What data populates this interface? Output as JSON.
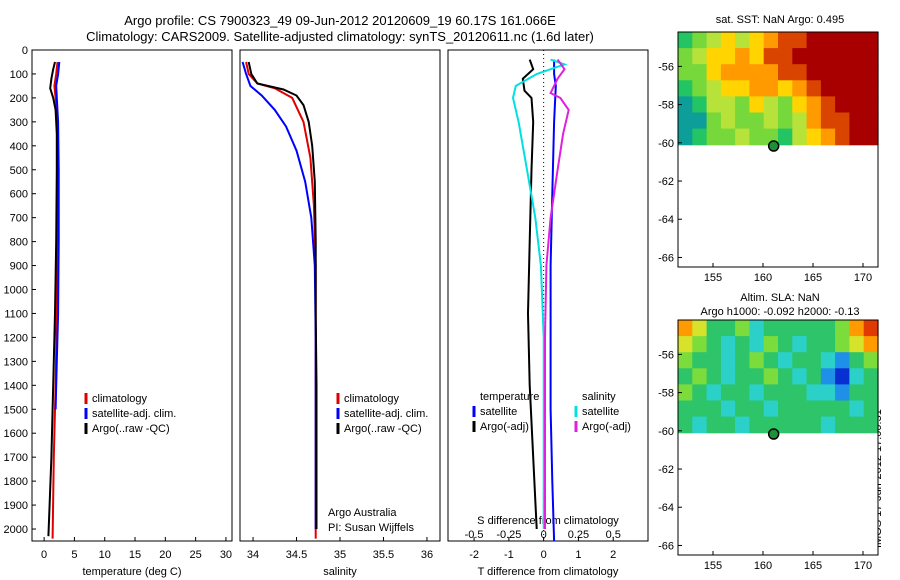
{
  "header": {
    "line1": "Argo profile: CS 7900323_49 09-Jun-2012 20120609_19 60.17S 161.066E",
    "line2": "Climatology: CARS2009. Satellite-adjusted climatology: synTS_20120611.nc (1.6d later)"
  },
  "colors": {
    "climatology": "#e00000",
    "satellite": "#0000ff",
    "argo": "#000000",
    "sat_salinity": "#00e0e0",
    "argo_adj_salinity": "#e020e0"
  },
  "chart_data": [
    {
      "type": "line",
      "xlabel": "temperature (deg C)",
      "xticks": [
        "0",
        "5",
        "10",
        "15",
        "20",
        "25",
        "30"
      ],
      "xlim": [
        -2,
        31
      ],
      "ylim": [
        0,
        2050
      ],
      "yticks": [
        "0",
        "100",
        "200",
        "300",
        "400",
        "500",
        "600",
        "700",
        "800",
        "900",
        "1000",
        "1100",
        "1200",
        "1300",
        "1400",
        "1500",
        "1600",
        "1700",
        "1800",
        "1900",
        "2000"
      ],
      "legend": [
        "climatology",
        "satellite-adj. clim.",
        "Argo(..raw -QC)"
      ],
      "series": [
        {
          "name": "climatology",
          "points": [
            [
              2.2,
              50
            ],
            [
              2.0,
              100
            ],
            [
              1.7,
              150
            ],
            [
              1.9,
              200
            ],
            [
              2.1,
              300
            ],
            [
              2.2,
              500
            ],
            [
              2.2,
              800
            ],
            [
              2.1,
              1100
            ],
            [
              1.9,
              1400
            ],
            [
              1.6,
              1700
            ],
            [
              1.4,
              2040
            ]
          ]
        },
        {
          "name": "satellite-adj. clim.",
          "points": [
            [
              2.5,
              50
            ],
            [
              2.3,
              100
            ],
            [
              2.0,
              150
            ],
            [
              2.1,
              200
            ],
            [
              2.3,
              300
            ],
            [
              2.4,
              500
            ],
            [
              2.4,
              800
            ],
            [
              2.3,
              1100
            ],
            [
              2.1,
              1300
            ],
            [
              1.9,
              1500
            ]
          ]
        },
        {
          "name": "Argo(..raw -QC)",
          "points": [
            [
              1.8,
              50
            ],
            [
              1.5,
              80
            ],
            [
              1.2,
              120
            ],
            [
              1.0,
              160
            ],
            [
              1.5,
              200
            ],
            [
              1.9,
              250
            ],
            [
              2.1,
              350
            ],
            [
              2.1,
              500
            ],
            [
              2.0,
              800
            ],
            [
              1.8,
              1100
            ],
            [
              1.5,
              1400
            ],
            [
              1.2,
              1700
            ],
            [
              0.9,
              1900
            ],
            [
              0.7,
              2030
            ]
          ]
        }
      ]
    },
    {
      "type": "line",
      "xlabel": "salinity",
      "xticks": [
        "34",
        "34.5",
        "35",
        "35.5",
        "36"
      ],
      "xlim": [
        33.85,
        36.15
      ],
      "ylim": [
        0,
        2050
      ],
      "legend": [
        "climatology",
        "satellite-adj. clim.",
        "Argo(..raw -QC)"
      ],
      "annotation": [
        "Argo Australia",
        "PI: Susan Wijffels"
      ],
      "series": [
        {
          "name": "climatology",
          "points": [
            [
              33.92,
              50
            ],
            [
              33.95,
              100
            ],
            [
              34.05,
              140
            ],
            [
              34.25,
              160
            ],
            [
              34.45,
              200
            ],
            [
              34.58,
              300
            ],
            [
              34.66,
              450
            ],
            [
              34.7,
              650
            ],
            [
              34.72,
              900
            ],
            [
              34.72,
              1200
            ],
            [
              34.72,
              1600
            ],
            [
              34.72,
              2040
            ]
          ]
        },
        {
          "name": "satellite-adj. clim.",
          "points": [
            [
              33.88,
              50
            ],
            [
              33.92,
              100
            ],
            [
              33.97,
              150
            ],
            [
              34.1,
              190
            ],
            [
              34.25,
              250
            ],
            [
              34.38,
              320
            ],
            [
              34.5,
              420
            ],
            [
              34.6,
              550
            ],
            [
              34.67,
              700
            ],
            [
              34.71,
              900
            ],
            [
              34.72,
              1200
            ],
            [
              34.72,
              1600
            ],
            [
              34.72,
              2000
            ]
          ]
        },
        {
          "name": "Argo(..raw -QC)",
          "points": [
            [
              33.95,
              50
            ],
            [
              33.98,
              100
            ],
            [
              34.05,
              140
            ],
            [
              34.35,
              165
            ],
            [
              34.5,
              190
            ],
            [
              34.58,
              230
            ],
            [
              34.64,
              300
            ],
            [
              34.68,
              400
            ],
            [
              34.71,
              550
            ],
            [
              34.72,
              800
            ],
            [
              34.72,
              1100
            ],
            [
              34.73,
              1400
            ],
            [
              34.73,
              1700
            ],
            [
              34.73,
              2000
            ]
          ]
        }
      ]
    },
    {
      "type": "line",
      "xlabel": "T difference from climatology",
      "xticks_bottom": [
        "-2",
        "-1",
        "0",
        "1",
        "2"
      ],
      "xlim_T": [
        -2.75,
        3.0
      ],
      "xlabel_top": "S difference from climatology",
      "xticks_top": [
        "-0.5",
        "-0.25",
        "0",
        "0.25",
        "0.5"
      ],
      "xlim_S": [
        -0.6875,
        0.75
      ],
      "ylim": [
        0,
        2050
      ],
      "legend": {
        "temperature": [
          "temperature",
          "satellite",
          "Argo(-adj)"
        ],
        "salinity": [
          "salinity",
          "satellite",
          "Argo(-adj)"
        ]
      },
      "series": [
        {
          "name": "temperature satellite",
          "axis": "T",
          "points": [
            [
              0.3,
              40
            ],
            [
              0.3,
              100
            ],
            [
              0.35,
              150
            ],
            [
              0.3,
              300
            ],
            [
              0.25,
              600
            ],
            [
              0.2,
              900
            ],
            [
              0.2,
              1200
            ],
            [
              0.2,
              1500
            ],
            [
              0.25,
              1800
            ],
            [
              0.3,
              2050
            ]
          ]
        },
        {
          "name": "temperature Argo(-adj)",
          "axis": "T",
          "points": [
            [
              -0.4,
              40
            ],
            [
              -0.3,
              80
            ],
            [
              -0.6,
              120
            ],
            [
              -0.55,
              170
            ],
            [
              -0.35,
              200
            ],
            [
              -0.3,
              300
            ],
            [
              -0.35,
              500
            ],
            [
              -0.4,
              800
            ],
            [
              -0.45,
              1100
            ],
            [
              -0.4,
              1400
            ],
            [
              -0.3,
              1700
            ],
            [
              -0.2,
              2000
            ]
          ]
        },
        {
          "name": "salinity satellite",
          "axis": "S",
          "points": [
            [
              0.05,
              40
            ],
            [
              0.15,
              60
            ],
            [
              -0.05,
              100
            ],
            [
              -0.2,
              150
            ],
            [
              -0.22,
              200
            ],
            [
              -0.18,
              300
            ],
            [
              -0.12,
              500
            ],
            [
              -0.06,
              700
            ],
            [
              -0.02,
              900
            ],
            [
              0.0,
              1200
            ],
            [
              0.0,
              1600
            ],
            [
              0.0,
              2000
            ]
          ]
        },
        {
          "name": "salinity Argo(-adj)",
          "axis": "S",
          "points": [
            [
              0.1,
              40
            ],
            [
              0.15,
              80
            ],
            [
              0.1,
              120
            ],
            [
              0.05,
              180
            ],
            [
              0.12,
              200
            ],
            [
              0.18,
              250
            ],
            [
              0.14,
              350
            ],
            [
              0.1,
              500
            ],
            [
              0.05,
              700
            ],
            [
              0.02,
              900
            ],
            [
              0.01,
              1200
            ],
            [
              0.01,
              1600
            ],
            [
              0.01,
              2000
            ]
          ]
        }
      ]
    },
    {
      "type": "heatmap",
      "title": "sat. SST: NaN Argo: 0.495",
      "xticks": [
        "155",
        "160",
        "165",
        "170"
      ],
      "xlim": [
        151.5,
        171.5
      ],
      "yticks": [
        "-56",
        "-58",
        "-60",
        "-62",
        "-64",
        "-66"
      ],
      "ylim": [
        -66.5,
        -54.2
      ],
      "data_bottom_lat": -60.1,
      "marker": {
        "lon": 161.066,
        "lat": -60.17
      },
      "palette": [
        "#0d9e9a",
        "#23c463",
        "#76d83a",
        "#b7e23a",
        "#ffd400",
        "#ff9a00",
        "#d94500",
        "#a80000"
      ],
      "grid": [
        [
          1,
          2,
          3,
          4,
          3,
          4,
          5,
          6,
          6,
          7,
          7,
          7,
          7,
          7
        ],
        [
          2,
          3,
          4,
          4,
          5,
          4,
          6,
          6,
          7,
          7,
          7,
          7,
          7,
          7
        ],
        [
          2,
          2,
          4,
          5,
          5,
          5,
          5,
          6,
          6,
          7,
          7,
          7,
          7,
          7
        ],
        [
          1,
          2,
          3,
          4,
          4,
          5,
          5,
          4,
          5,
          6,
          7,
          7,
          7,
          7
        ],
        [
          0,
          1,
          3,
          3,
          2,
          4,
          3,
          2,
          4,
          5,
          6,
          7,
          7,
          7
        ],
        [
          0,
          0,
          2,
          3,
          2,
          2,
          3,
          2,
          3,
          5,
          6,
          6,
          7,
          7
        ],
        [
          0,
          1,
          2,
          2,
          3,
          2,
          2,
          1,
          3,
          4,
          5,
          6,
          7,
          7
        ]
      ]
    },
    {
      "type": "heatmap",
      "title_lines": [
        "Altim. SLA: NaN",
        "Argo h1000: -0.092 h2000: -0.13"
      ],
      "xticks": [
        "155",
        "160",
        "165",
        "170"
      ],
      "xlim": [
        151.5,
        171.5
      ],
      "yticks": [
        "-56",
        "-58",
        "-60",
        "-62",
        "-64",
        "-66"
      ],
      "ylim": [
        -66.5,
        -54.2
      ],
      "data_bottom_lat": -60.1,
      "marker": {
        "lon": 161.066,
        "lat": -60.17
      },
      "palette": [
        "#0a2fd0",
        "#1e90e8",
        "#2bd1c8",
        "#2ec46a",
        "#7bdc3c",
        "#d6e32a",
        "#ff9a00",
        "#e03a00"
      ],
      "grid": [
        [
          6,
          5,
          3,
          3,
          4,
          2,
          3,
          3,
          3,
          3,
          3,
          4,
          6,
          7
        ],
        [
          5,
          4,
          3,
          2,
          3,
          2,
          4,
          3,
          2,
          3,
          3,
          4,
          5,
          6
        ],
        [
          4,
          3,
          3,
          2,
          3,
          4,
          3,
          2,
          3,
          3,
          2,
          1,
          3,
          4
        ],
        [
          3,
          4,
          3,
          2,
          3,
          3,
          4,
          3,
          2,
          3,
          1,
          0,
          2,
          3
        ],
        [
          4,
          3,
          2,
          3,
          3,
          2,
          3,
          3,
          3,
          2,
          2,
          1,
          3,
          3
        ],
        [
          3,
          3,
          3,
          2,
          3,
          3,
          2,
          3,
          3,
          3,
          3,
          3,
          2,
          3
        ],
        [
          3,
          2,
          3,
          3,
          2,
          3,
          3,
          3,
          3,
          3,
          2,
          3,
          3,
          3
        ]
      ]
    }
  ],
  "stamp": "IMOS 17-Jun-2012 17:00:51"
}
